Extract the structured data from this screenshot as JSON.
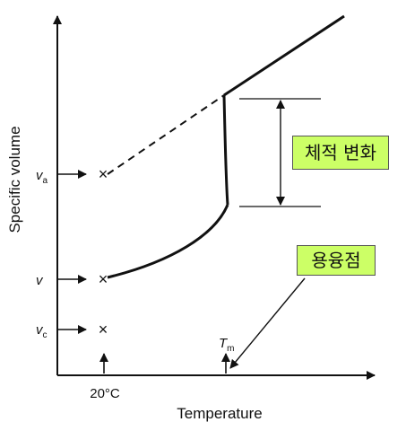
{
  "chart_data": {
    "type": "line",
    "xlabel": "Temperature",
    "ylabel": "Specific volume",
    "y_ticks": [
      {
        "main": "v",
        "sub": "a"
      },
      {
        "main": "v",
        "sub": ""
      },
      {
        "main": "v",
        "sub": "c"
      }
    ],
    "x_ticks": [
      {
        "main": "20°C",
        "sub": ""
      },
      {
        "main": "T",
        "sub": "m"
      }
    ],
    "markers": [
      {
        "x": "20°C",
        "y": "va",
        "symbol": "×"
      },
      {
        "x": "20°C",
        "y": "v",
        "symbol": "×"
      },
      {
        "x": "20°C",
        "y": "vc",
        "symbol": "×"
      }
    ],
    "annotations": {
      "volume_change": "체적 변화",
      "melting_point": "용융점"
    },
    "grid": false,
    "curves": [
      {
        "segment": "solid-rising",
        "style": "solid"
      },
      {
        "segment": "extrapolated",
        "style": "dashed"
      },
      {
        "segment": "melting-jump",
        "style": "solid"
      },
      {
        "segment": "liquid",
        "style": "solid"
      }
    ]
  }
}
